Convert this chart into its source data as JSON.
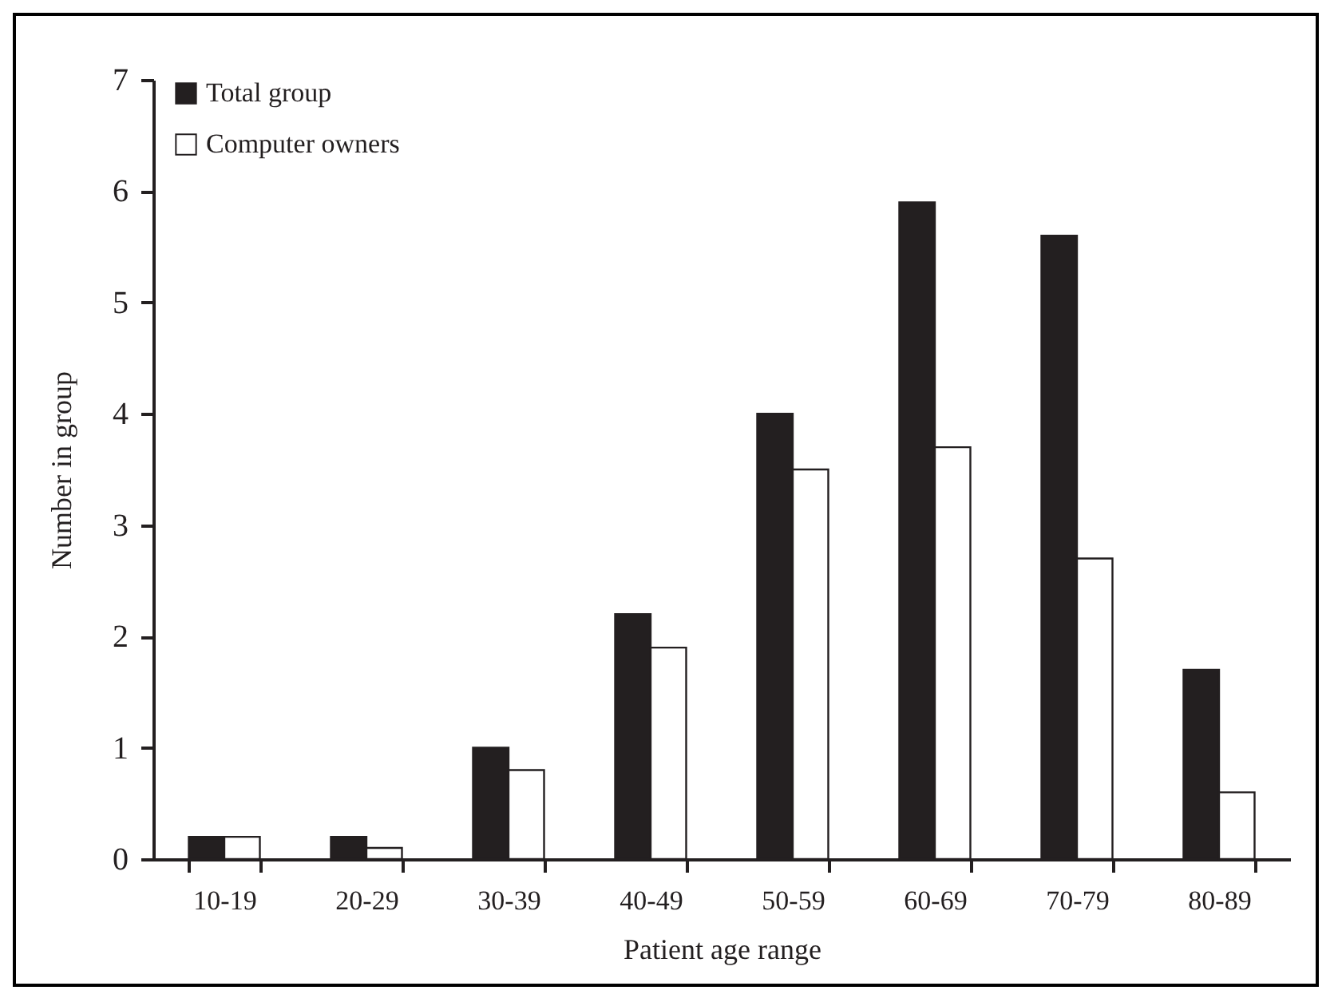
{
  "chart_data": {
    "type": "bar",
    "xlabel": "Patient age range",
    "ylabel": "Number in group",
    "categories": [
      "10-19",
      "20-29",
      "30-39",
      "40-49",
      "50-59",
      "60-69",
      "70-79",
      "80-89"
    ],
    "series": [
      {
        "name": "Total group",
        "color": "#231f20",
        "values": [
          0.2,
          0.2,
          1.0,
          2.2,
          4.0,
          5.9,
          5.6,
          1.7
        ]
      },
      {
        "name": "Computer owners",
        "color": "#ffffff",
        "values": [
          0.2,
          0.1,
          0.8,
          1.9,
          3.5,
          3.7,
          2.7,
          0.6
        ]
      }
    ],
    "ylim": [
      0,
      7
    ],
    "yticks": [
      0,
      1,
      2,
      3,
      4,
      5,
      6,
      7
    ],
    "grid": false,
    "legend": "top left"
  }
}
